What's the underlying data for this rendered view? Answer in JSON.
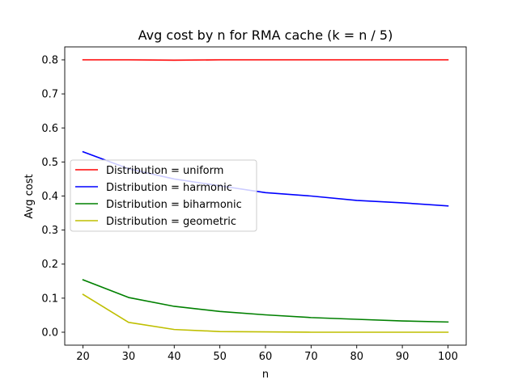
{
  "chart_data": {
    "type": "line",
    "title": "Avg cost by n for RMA cache (k = n / 5)",
    "xlabel": "n",
    "ylabel": "Avg cost",
    "x": [
      20,
      30,
      40,
      50,
      60,
      70,
      80,
      90,
      100
    ],
    "xlim": [
      16,
      104
    ],
    "ylim": [
      -0.038,
      0.838
    ],
    "xticks": [
      "20",
      "30",
      "40",
      "50",
      "60",
      "70",
      "80",
      "90",
      "100"
    ],
    "yticks": [
      "0.0",
      "0.1",
      "0.2",
      "0.3",
      "0.4",
      "0.5",
      "0.6",
      "0.7",
      "0.8"
    ],
    "grid": false,
    "legend_position": "center-left",
    "series": [
      {
        "name": "Distribution = uniform",
        "color": "#ff0000",
        "values": [
          0.8,
          0.8,
          0.799,
          0.8,
          0.8,
          0.8,
          0.8,
          0.8,
          0.8
        ]
      },
      {
        "name": "Distribution = harmonic",
        "color": "#0000ff",
        "values": [
          0.53,
          0.48,
          0.45,
          0.43,
          0.41,
          0.4,
          0.387,
          0.38,
          0.371
        ]
      },
      {
        "name": "Distribution = biharmonic",
        "color": "#008000",
        "values": [
          0.154,
          0.102,
          0.076,
          0.061,
          0.051,
          0.043,
          0.038,
          0.033,
          0.03
        ]
      },
      {
        "name": "Distribution = geometric",
        "color": "#bfbf00",
        "values": [
          0.111,
          0.029,
          0.008,
          0.002,
          0.001,
          0.0,
          0.0,
          0.0,
          0.0
        ]
      }
    ]
  }
}
